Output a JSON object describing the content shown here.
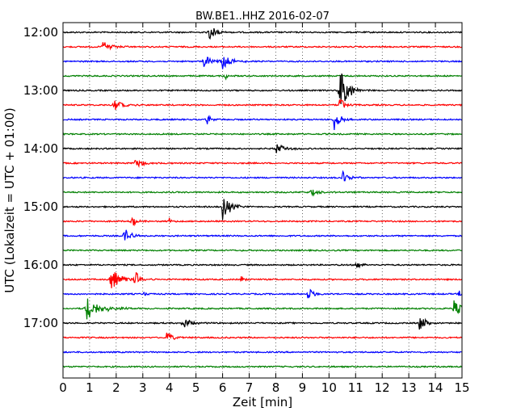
{
  "chart_data": {
    "type": "line",
    "title": "BW.BE1..HHZ 2016-02-07",
    "xlabel": "Zeit  [min]",
    "ylabel": "UTC (Lokalzeit = UTC + 01:00)",
    "xlim": [
      0,
      15
    ],
    "x_ticks": [
      "0",
      "1",
      "2",
      "3",
      "4",
      "5",
      "6",
      "7",
      "8",
      "9",
      "10",
      "11",
      "12",
      "13",
      "14",
      "15"
    ],
    "y_tick_labels": [
      "12:00",
      "13:00",
      "14:00",
      "15:00",
      "16:00",
      "17:00"
    ],
    "y_tick_rows": [
      0,
      4,
      8,
      12,
      16,
      20
    ],
    "grid": true,
    "trace_colors": [
      "#000000",
      "#ff0000",
      "#0000ff",
      "#008000"
    ],
    "row_start_times": [
      "12:00",
      "12:15",
      "12:30",
      "12:45",
      "13:00",
      "13:15",
      "13:30",
      "13:45",
      "14:00",
      "14:15",
      "14:30",
      "14:45",
      "15:00",
      "15:15",
      "15:30",
      "15:45",
      "16:00",
      "16:15",
      "16:30",
      "16:45",
      "17:00",
      "17:15",
      "17:30",
      "17:45"
    ],
    "events": [
      {
        "row": 0,
        "t": 5.5,
        "amp": 14,
        "dur": 0.35
      },
      {
        "row": 1,
        "t": 1.5,
        "amp": 8,
        "dur": 0.5
      },
      {
        "row": 2,
        "t": 5.3,
        "amp": 8,
        "dur": 0.6
      },
      {
        "row": 2,
        "t": 6.0,
        "amp": 10,
        "dur": 0.5
      },
      {
        "row": 3,
        "t": 6.1,
        "amp": 5,
        "dur": 0.2
      },
      {
        "row": 4,
        "t": 10.4,
        "amp": 34,
        "dur": 0.45
      },
      {
        "row": 5,
        "t": 1.9,
        "amp": 8,
        "dur": 0.5
      },
      {
        "row": 5,
        "t": 10.4,
        "amp": 10,
        "dur": 0.35
      },
      {
        "row": 6,
        "t": 5.4,
        "amp": 6,
        "dur": 0.3
      },
      {
        "row": 6,
        "t": 10.2,
        "amp": 14,
        "dur": 0.35
      },
      {
        "row": 8,
        "t": 8.0,
        "amp": 6,
        "dur": 0.6
      },
      {
        "row": 9,
        "t": 2.7,
        "amp": 8,
        "dur": 0.45
      },
      {
        "row": 10,
        "t": 10.5,
        "amp": 9,
        "dur": 0.4
      },
      {
        "row": 11,
        "t": 9.3,
        "amp": 4,
        "dur": 0.6
      },
      {
        "row": 12,
        "t": 6.0,
        "amp": 16,
        "dur": 0.5
      },
      {
        "row": 13,
        "t": 2.6,
        "amp": 6,
        "dur": 0.35
      },
      {
        "row": 13,
        "t": 4.0,
        "amp": 4,
        "dur": 0.15
      },
      {
        "row": 14,
        "t": 2.3,
        "amp": 10,
        "dur": 0.4
      },
      {
        "row": 16,
        "t": 11.0,
        "amp": 6,
        "dur": 0.4
      },
      {
        "row": 17,
        "t": 1.8,
        "amp": 16,
        "dur": 0.6
      },
      {
        "row": 17,
        "t": 2.7,
        "amp": 14,
        "dur": 0.3
      },
      {
        "row": 17,
        "t": 6.7,
        "amp": 5,
        "dur": 0.25
      },
      {
        "row": 18,
        "t": 3.0,
        "amp": 5,
        "dur": 0.15
      },
      {
        "row": 18,
        "t": 9.2,
        "amp": 9,
        "dur": 0.4
      },
      {
        "row": 18,
        "t": 14.9,
        "amp": 5,
        "dur": 0.1
      },
      {
        "row": 19,
        "t": 0.85,
        "amp": 16,
        "dur": 0.9
      },
      {
        "row": 19,
        "t": 14.7,
        "amp": 12,
        "dur": 0.4
      },
      {
        "row": 20,
        "t": 4.5,
        "amp": 10,
        "dur": 0.4
      },
      {
        "row": 20,
        "t": 13.4,
        "amp": 12,
        "dur": 0.35
      },
      {
        "row": 21,
        "t": 3.9,
        "amp": 7,
        "dur": 0.4
      }
    ]
  }
}
